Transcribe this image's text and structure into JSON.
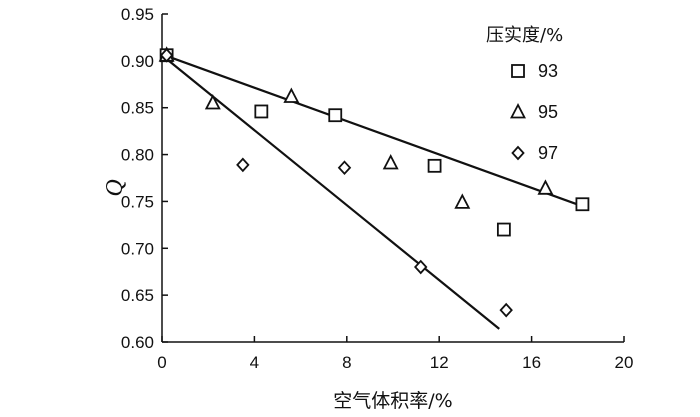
{
  "chart_data": {
    "type": "scatter",
    "xlabel": "空气体积率/%",
    "ylabel": "Q",
    "xlim": [
      0,
      20
    ],
    "ylim": [
      0.6,
      0.95
    ],
    "xticks": [
      0,
      4,
      8,
      12,
      16,
      20
    ],
    "yticks": [
      0.6,
      0.65,
      0.7,
      0.75,
      0.8,
      0.85,
      0.9,
      0.95
    ],
    "xtick_labels": [
      "0",
      "4",
      "8",
      "12",
      "16",
      "20"
    ],
    "ytick_labels": [
      "0.60",
      "0.65",
      "0.70",
      "0.75",
      "0.80",
      "0.85",
      "0.90",
      "0.95"
    ],
    "grid": false,
    "legend": {
      "title": "压实度/%",
      "position": "top-right"
    },
    "series": [
      {
        "name": "93",
        "marker": "square",
        "points": [
          [
            0.2,
            0.906
          ],
          [
            4.3,
            0.846
          ],
          [
            7.5,
            0.842
          ],
          [
            11.8,
            0.788
          ],
          [
            14.8,
            0.72
          ],
          [
            18.2,
            0.747
          ]
        ]
      },
      {
        "name": "95",
        "marker": "triangle",
        "points": [
          [
            0.2,
            0.906
          ],
          [
            2.2,
            0.855
          ],
          [
            5.6,
            0.862
          ],
          [
            9.9,
            0.791
          ],
          [
            13.0,
            0.749
          ],
          [
            16.6,
            0.764
          ]
        ]
      },
      {
        "name": "97",
        "marker": "diamond",
        "points": [
          [
            0.2,
            0.906
          ],
          [
            3.5,
            0.789
          ],
          [
            7.9,
            0.786
          ],
          [
            11.2,
            0.68
          ],
          [
            14.9,
            0.634
          ]
        ]
      }
    ],
    "fit_lines": [
      {
        "series": "93/95",
        "x": [
          0,
          18.3
        ],
        "y": [
          0.907,
          0.744
        ]
      },
      {
        "series": "97",
        "x": [
          0,
          14.6
        ],
        "y": [
          0.906,
          0.614
        ]
      }
    ]
  }
}
